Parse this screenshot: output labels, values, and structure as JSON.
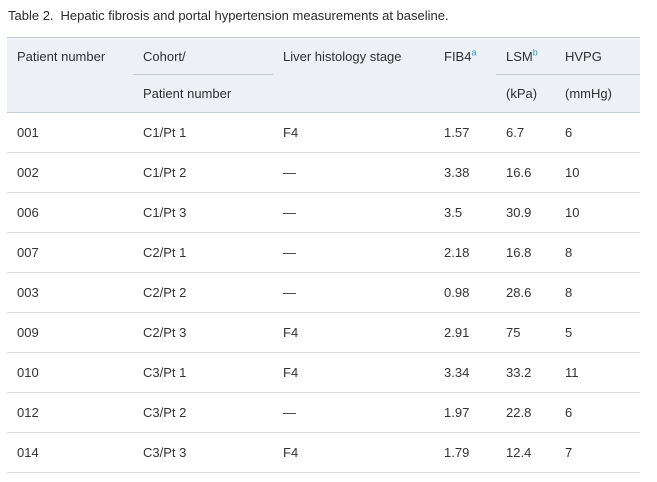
{
  "caption": {
    "label": "Table 2.",
    "text": "Hepatic fibrosis and portal hypertension measurements at baseline."
  },
  "table": {
    "header": {
      "patient_number": "Patient number",
      "cohort_line1": "Cohort/",
      "cohort_line2": "Patient number",
      "histology": "Liver histology stage",
      "fib4": {
        "label": "FIB4",
        "sup": "a"
      },
      "lsm": {
        "label": "LSM",
        "sup": "b",
        "unit": "(kPa)"
      },
      "hvpg": {
        "label": "HVPG",
        "unit": "(mmHg)"
      }
    },
    "rows": [
      [
        "001",
        "C1/Pt 1",
        "F4",
        "1.57",
        "6.7",
        "6"
      ],
      [
        "002",
        "C1/Pt 2",
        "—",
        "3.38",
        "16.6",
        "10"
      ],
      [
        "006",
        "C1/Pt 3",
        "—",
        "3.5",
        "30.9",
        "10"
      ],
      [
        "007",
        "C2/Pt 1",
        "—",
        "2.18",
        "16.8",
        "8"
      ],
      [
        "003",
        "C2/Pt 2",
        "—",
        "0.98",
        "28.6",
        "8"
      ],
      [
        "009",
        "C2/Pt 3",
        "F4",
        "2.91",
        "75",
        "5"
      ],
      [
        "010",
        "C3/Pt 1",
        "F4",
        "3.34",
        "33.2",
        "11"
      ],
      [
        "012",
        "C3/Pt 2",
        "—",
        "1.97",
        "22.8",
        "6"
      ],
      [
        "014",
        "C3/Pt 3",
        "F4",
        "1.79",
        "12.4",
        "7"
      ]
    ]
  },
  "colors": {
    "header_bg": "#edf1f6",
    "header_border": "#c6ccd4",
    "inner_rule": "#c5cbd7",
    "row_border": "#dadee3",
    "text": "#333333",
    "superscript_accent": "#2d96cd"
  }
}
